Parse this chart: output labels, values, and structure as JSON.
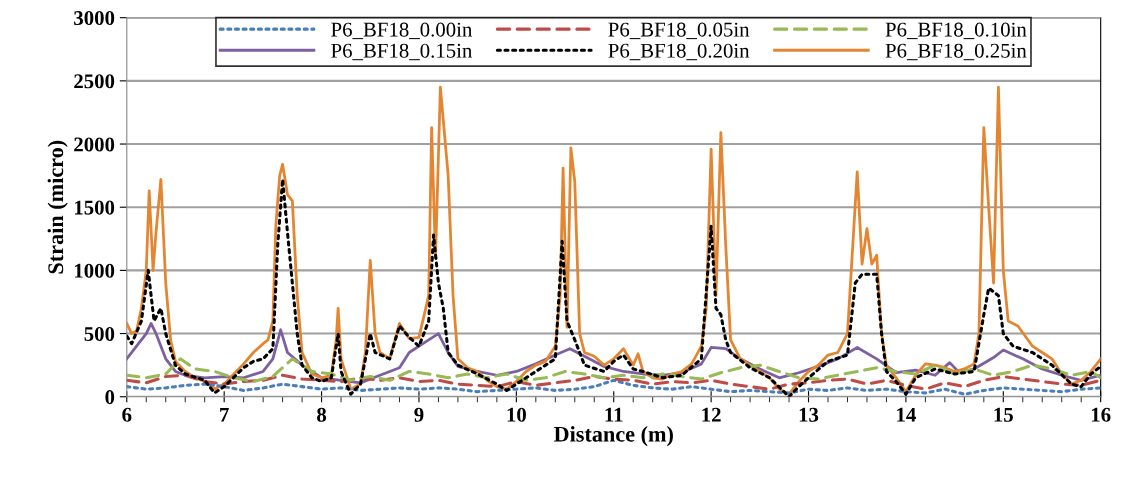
{
  "chart_data": {
    "type": "line",
    "xlabel": "Distance (m)",
    "ylabel": "Strain (micro)",
    "xlim": [
      6,
      16
    ],
    "xticks": [
      6,
      7,
      8,
      9,
      10,
      11,
      12,
      13,
      14,
      15,
      16
    ],
    "ylim": [
      0,
      3000
    ],
    "yticks": [
      0,
      500,
      1000,
      1500,
      2000,
      2500,
      3000
    ],
    "grid": "y",
    "legend": "top",
    "marker": "none",
    "series": [
      {
        "name": "P6_BF18_0.00in",
        "color": "#4a7ebb",
        "line_style": "dotted",
        "x": [
          6.0,
          6.2,
          6.4,
          6.6,
          6.8,
          7.0,
          7.2,
          7.4,
          7.6,
          7.8,
          8.0,
          8.2,
          8.4,
          8.6,
          8.8,
          9.0,
          9.2,
          9.4,
          9.6,
          9.8,
          10.0,
          10.2,
          10.4,
          10.6,
          10.8,
          11.0,
          11.2,
          11.4,
          11.6,
          11.8,
          12.0,
          12.2,
          12.4,
          12.6,
          12.8,
          13.0,
          13.2,
          13.4,
          13.6,
          13.8,
          14.0,
          14.2,
          14.4,
          14.6,
          14.8,
          15.0,
          15.2,
          15.4,
          15.6,
          15.8,
          16.0
        ],
        "values": [
          80,
          60,
          70,
          90,
          100,
          80,
          50,
          70,
          100,
          80,
          60,
          70,
          50,
          60,
          70,
          60,
          70,
          60,
          40,
          50,
          60,
          70,
          50,
          60,
          80,
          130,
          90,
          70,
          60,
          80,
          60,
          40,
          50,
          40,
          30,
          60,
          50,
          70,
          50,
          60,
          40,
          30,
          60,
          20,
          50,
          70,
          60,
          50,
          40,
          60,
          70
        ]
      },
      {
        "name": "P6_BF18_0.05in",
        "color": "#be4b48",
        "line_style": "dashed",
        "x": [
          6.0,
          6.2,
          6.4,
          6.6,
          6.8,
          7.0,
          7.2,
          7.4,
          7.6,
          7.8,
          8.0,
          8.2,
          8.4,
          8.6,
          8.8,
          9.0,
          9.2,
          9.4,
          9.6,
          9.8,
          10.0,
          10.2,
          10.4,
          10.6,
          10.8,
          11.0,
          11.2,
          11.4,
          11.6,
          11.8,
          12.0,
          12.2,
          12.4,
          12.6,
          12.8,
          13.0,
          13.2,
          13.4,
          13.6,
          13.8,
          14.0,
          14.2,
          14.4,
          14.6,
          14.8,
          15.0,
          15.2,
          15.4,
          15.6,
          15.8,
          16.0
        ],
        "values": [
          130,
          110,
          160,
          170,
          120,
          100,
          120,
          130,
          170,
          140,
          130,
          120,
          150,
          130,
          150,
          120,
          130,
          100,
          90,
          80,
          120,
          90,
          110,
          130,
          160,
          140,
          130,
          100,
          120,
          110,
          130,
          100,
          80,
          60,
          100,
          110,
          130,
          140,
          100,
          130,
          90,
          60,
          110,
          80,
          130,
          160,
          140,
          120,
          100,
          90,
          130
        ]
      },
      {
        "name": "P6_BF18_0.10in",
        "color": "#98b954",
        "line_style": "dashed",
        "x": [
          6.0,
          6.2,
          6.4,
          6.55,
          6.7,
          6.9,
          7.1,
          7.3,
          7.5,
          7.7,
          7.9,
          8.1,
          8.3,
          8.5,
          8.7,
          8.9,
          9.1,
          9.3,
          9.5,
          9.7,
          9.9,
          10.1,
          10.3,
          10.5,
          10.7,
          10.9,
          11.1,
          11.3,
          11.5,
          11.7,
          11.9,
          12.1,
          12.3,
          12.5,
          12.7,
          12.9,
          13.1,
          13.3,
          13.5,
          13.7,
          13.9,
          14.1,
          14.3,
          14.5,
          14.7,
          14.9,
          15.1,
          15.3,
          15.5,
          15.7,
          15.9,
          16.0
        ],
        "values": [
          170,
          150,
          180,
          300,
          220,
          200,
          150,
          120,
          160,
          300,
          200,
          180,
          130,
          160,
          130,
          200,
          180,
          150,
          180,
          150,
          180,
          130,
          150,
          200,
          180,
          150,
          170,
          150,
          180,
          160,
          140,
          190,
          230,
          250,
          200,
          150,
          140,
          170,
          200,
          230,
          200,
          180,
          250,
          180,
          220,
          170,
          200,
          250,
          220,
          170,
          200,
          150
        ]
      },
      {
        "name": "P6_BF18_0.15in",
        "color": "#7d60a0",
        "line_style": "solid",
        "x": [
          6.0,
          6.1,
          6.2,
          6.25,
          6.3,
          6.4,
          6.5,
          6.6,
          6.8,
          7.0,
          7.2,
          7.4,
          7.5,
          7.58,
          7.65,
          7.8,
          8.0,
          8.2,
          8.4,
          8.6,
          8.8,
          8.9,
          9.1,
          9.2,
          9.3,
          9.4,
          9.6,
          9.8,
          10.0,
          10.2,
          10.4,
          10.55,
          10.7,
          10.9,
          11.1,
          11.3,
          11.5,
          11.7,
          11.9,
          12.0,
          12.15,
          12.3,
          12.5,
          12.7,
          12.9,
          13.1,
          13.3,
          13.5,
          13.7,
          13.9,
          14.1,
          14.3,
          14.45,
          14.55,
          14.7,
          14.9,
          15.0,
          15.2,
          15.4,
          15.6,
          15.8,
          16.0
        ],
        "values": [
          300,
          400,
          500,
          580,
          500,
          300,
          200,
          170,
          150,
          160,
          150,
          200,
          300,
          530,
          350,
          250,
          150,
          130,
          110,
          170,
          230,
          350,
          450,
          500,
          350,
          240,
          200,
          170,
          200,
          260,
          330,
          380,
          320,
          240,
          200,
          180,
          170,
          190,
          260,
          390,
          380,
          300,
          220,
          150,
          190,
          240,
          300,
          390,
          300,
          190,
          210,
          170,
          270,
          190,
          220,
          310,
          370,
          300,
          220,
          170,
          130,
          170
        ]
      },
      {
        "name": "P6_BF18_0.20in",
        "color": "#000000",
        "line_style": "dotted",
        "x": [
          6.0,
          6.05,
          6.15,
          6.22,
          6.28,
          6.35,
          6.4,
          6.5,
          6.6,
          6.8,
          6.9,
          7.0,
          7.2,
          7.3,
          7.4,
          7.5,
          7.55,
          7.6,
          7.65,
          7.7,
          7.75,
          7.8,
          7.9,
          8.0,
          8.1,
          8.17,
          8.2,
          8.3,
          8.4,
          8.5,
          8.55,
          8.7,
          8.8,
          8.9,
          9.0,
          9.1,
          9.15,
          9.2,
          9.25,
          9.3,
          9.4,
          9.6,
          9.8,
          9.9,
          10.0,
          10.2,
          10.3,
          10.4,
          10.47,
          10.52,
          10.6,
          10.7,
          10.9,
          11.0,
          11.1,
          11.2,
          11.3,
          11.5,
          11.7,
          11.9,
          12.0,
          12.05,
          12.1,
          12.15,
          12.2,
          12.4,
          12.6,
          12.8,
          12.9,
          13.0,
          13.2,
          13.4,
          13.48,
          13.55,
          13.7,
          13.75,
          13.8,
          13.9,
          14.0,
          14.1,
          14.3,
          14.5,
          14.7,
          14.8,
          14.85,
          14.95,
          15.0,
          15.1,
          15.3,
          15.5,
          15.7,
          15.8,
          15.9,
          16.0
        ],
        "values": [
          480,
          420,
          600,
          1000,
          600,
          700,
          500,
          250,
          180,
          130,
          30,
          80,
          230,
          280,
          300,
          380,
          1200,
          1720,
          1300,
          900,
          500,
          250,
          150,
          120,
          150,
          500,
          200,
          20,
          100,
          500,
          350,
          300,
          560,
          470,
          400,
          600,
          1280,
          900,
          700,
          350,
          250,
          180,
          100,
          50,
          100,
          200,
          250,
          300,
          1230,
          600,
          450,
          250,
          200,
          280,
          330,
          220,
          200,
          150,
          170,
          300,
          1350,
          700,
          650,
          450,
          350,
          230,
          150,
          0,
          80,
          150,
          280,
          330,
          900,
          970,
          970,
          500,
          200,
          120,
          20,
          150,
          220,
          180,
          200,
          650,
          860,
          800,
          500,
          400,
          350,
          250,
          100,
          80,
          180,
          240
        ]
      },
      {
        "name": "P6_BF18_0.25in",
        "color": "#e48631",
        "line_style": "solid",
        "x": [
          6.0,
          6.05,
          6.1,
          6.15,
          6.2,
          6.23,
          6.27,
          6.3,
          6.35,
          6.4,
          6.45,
          6.5,
          6.6,
          6.7,
          6.8,
          6.9,
          7.0,
          7.1,
          7.2,
          7.3,
          7.4,
          7.45,
          7.5,
          7.53,
          7.57,
          7.6,
          7.65,
          7.7,
          7.75,
          7.8,
          7.9,
          8.0,
          8.1,
          8.15,
          8.17,
          8.2,
          8.3,
          8.4,
          8.45,
          8.5,
          8.55,
          8.6,
          8.7,
          8.8,
          8.9,
          9.0,
          9.1,
          9.13,
          9.17,
          9.22,
          9.3,
          9.35,
          9.4,
          9.5,
          9.6,
          9.7,
          9.8,
          9.9,
          10.0,
          10.1,
          10.2,
          10.3,
          10.4,
          10.45,
          10.48,
          10.52,
          10.56,
          10.6,
          10.65,
          10.7,
          10.8,
          10.9,
          11.0,
          11.1,
          11.2,
          11.25,
          11.3,
          11.4,
          11.5,
          11.6,
          11.7,
          11.8,
          11.9,
          11.95,
          12.0,
          12.05,
          12.1,
          12.15,
          12.2,
          12.3,
          12.4,
          12.5,
          12.6,
          12.7,
          12.8,
          12.9,
          13.0,
          13.1,
          13.2,
          13.3,
          13.4,
          13.5,
          13.55,
          13.6,
          13.65,
          13.7,
          13.75,
          13.8,
          13.9,
          14.0,
          14.1,
          14.2,
          14.3,
          14.4,
          14.5,
          14.6,
          14.7,
          14.75,
          14.8,
          14.85,
          14.9,
          14.95,
          15.0,
          15.05,
          15.15,
          15.3,
          15.4,
          15.5,
          15.6,
          15.7,
          15.8,
          15.9,
          16.0
        ],
        "values": [
          580,
          500,
          520,
          700,
          1000,
          1630,
          1000,
          1300,
          1720,
          900,
          450,
          280,
          200,
          150,
          120,
          60,
          100,
          180,
          260,
          350,
          420,
          450,
          600,
          1350,
          1750,
          1840,
          1600,
          1550,
          800,
          350,
          180,
          150,
          170,
          450,
          700,
          300,
          60,
          100,
          350,
          1080,
          500,
          350,
          300,
          580,
          460,
          470,
          800,
          2130,
          1100,
          2450,
          1750,
          800,
          300,
          230,
          200,
          130,
          80,
          60,
          120,
          200,
          250,
          280,
          400,
          800,
          1810,
          550,
          1970,
          1700,
          500,
          350,
          320,
          250,
          300,
          380,
          250,
          340,
          200,
          150,
          140,
          180,
          200,
          260,
          400,
          700,
          1960,
          800,
          2090,
          1200,
          450,
          300,
          250,
          200,
          150,
          60,
          20,
          120,
          200,
          250,
          330,
          350,
          500,
          1780,
          1050,
          1330,
          1050,
          1120,
          500,
          250,
          150,
          40,
          170,
          260,
          250,
          230,
          200,
          220,
          260,
          500,
          2130,
          1500,
          900,
          2450,
          1000,
          600,
          560,
          400,
          350,
          300,
          180,
          100,
          130,
          200,
          300
        ]
      }
    ]
  }
}
